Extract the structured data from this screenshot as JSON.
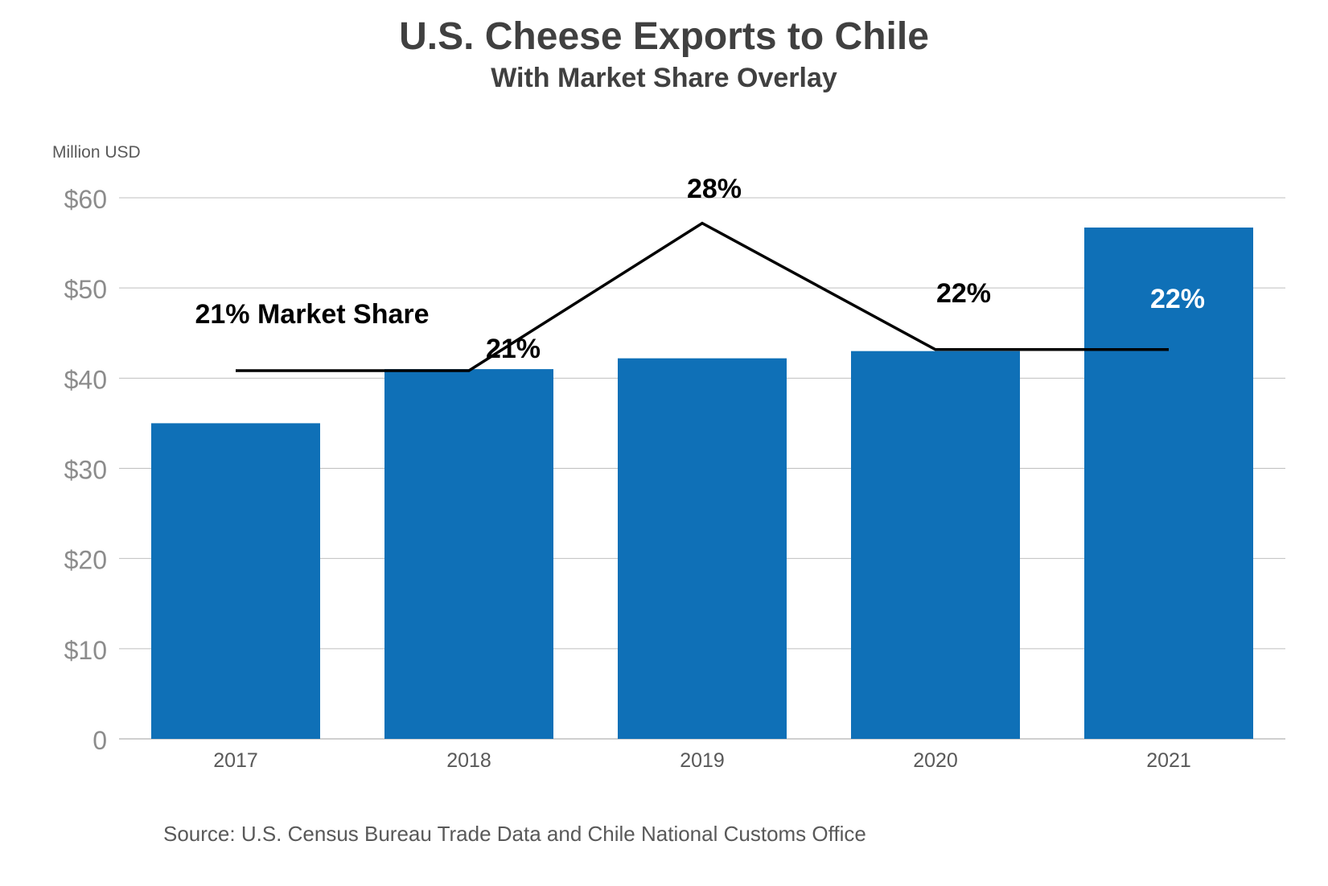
{
  "header": {
    "title": "U.S. Cheese Exports to Chile",
    "subtitle": "With Market Share Overlay"
  },
  "footer": {
    "source": "Source: U.S. Census Bureau Trade Data and Chile National Customs Office"
  },
  "chart_data": {
    "type": "bar",
    "title": "U.S. Cheese Exports to Chile",
    "subtitle": "With Market Share Overlay",
    "ylabel": "Million USD",
    "xlabel": "",
    "categories": [
      "2017",
      "2018",
      "2019",
      "2020",
      "2021"
    ],
    "series": [
      {
        "values": [
          35,
          41,
          42.2,
          43,
          56.7
        ],
        "color": "#0F70B7"
      }
    ],
    "overlay_line": {
      "values": [
        21,
        21,
        28,
        22,
        22
      ],
      "labels": [
        "21% Market Share",
        "21%",
        "28%",
        "22%",
        "22%"
      ],
      "color": "#000000"
    },
    "ylim": [
      0,
      60
    ],
    "yticks": [
      0,
      10,
      20,
      30,
      40,
      50,
      60
    ],
    "ytick_labels": [
      "0",
      "$10",
      "$20",
      "$30",
      "$40",
      "$50",
      "$60"
    ],
    "grid": true,
    "colors": {
      "bar": "#0F70B7",
      "grid": "#BFBFBF",
      "tick_text": "#8C8C8C",
      "line": "#000000"
    }
  }
}
